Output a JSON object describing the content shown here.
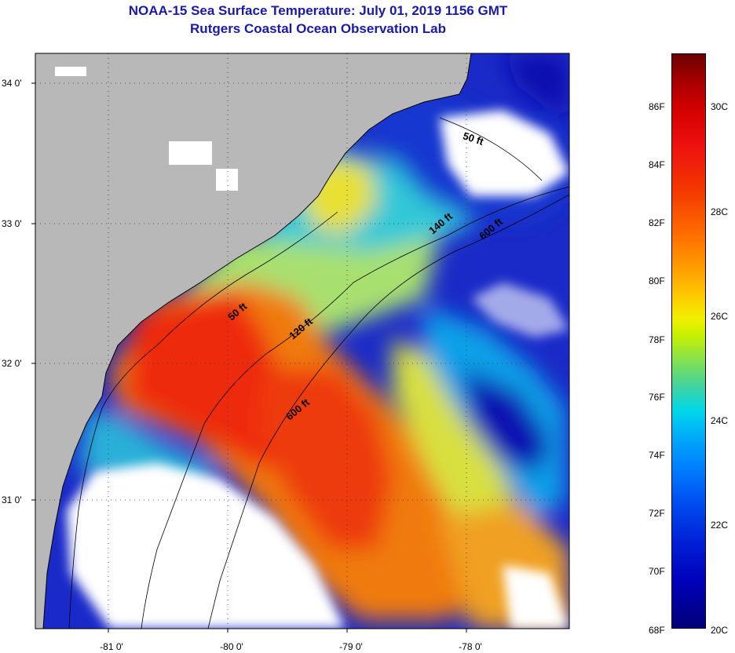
{
  "title": {
    "line1": "NOAA-15 Sea Surface Temperature:  July 01, 2019 1156 GMT",
    "line2": "Rutgers Coastal Ocean Observation Lab"
  },
  "map": {
    "latitude_labels": [
      "34 0'",
      "33 0'",
      "32 0'",
      "31 0'"
    ],
    "longitude_labels": [
      "-81 0'",
      "-80 0'",
      "-79 0'",
      "-78 0'"
    ],
    "contour_labels": [
      "50 ft",
      "140 ft",
      "600 ft",
      "50 ft",
      "120 ft",
      "600 ft"
    ],
    "colors": {
      "land": "#b8b8b8",
      "cloud": "#ffffff",
      "deep_blue": "#0a10b0",
      "warm_red": "#ee2a10"
    }
  },
  "colorbar": {
    "fahrenheit_labels": [
      "86F",
      "84F",
      "82F",
      "80F",
      "78F",
      "76F",
      "74F",
      "72F",
      "70F",
      "68F"
    ],
    "celsius_labels": [
      "30C",
      "28C",
      "26C",
      "24C",
      "22C",
      "20C"
    ],
    "range_f": [
      68,
      87.8
    ],
    "range_c": [
      20,
      31
    ]
  }
}
